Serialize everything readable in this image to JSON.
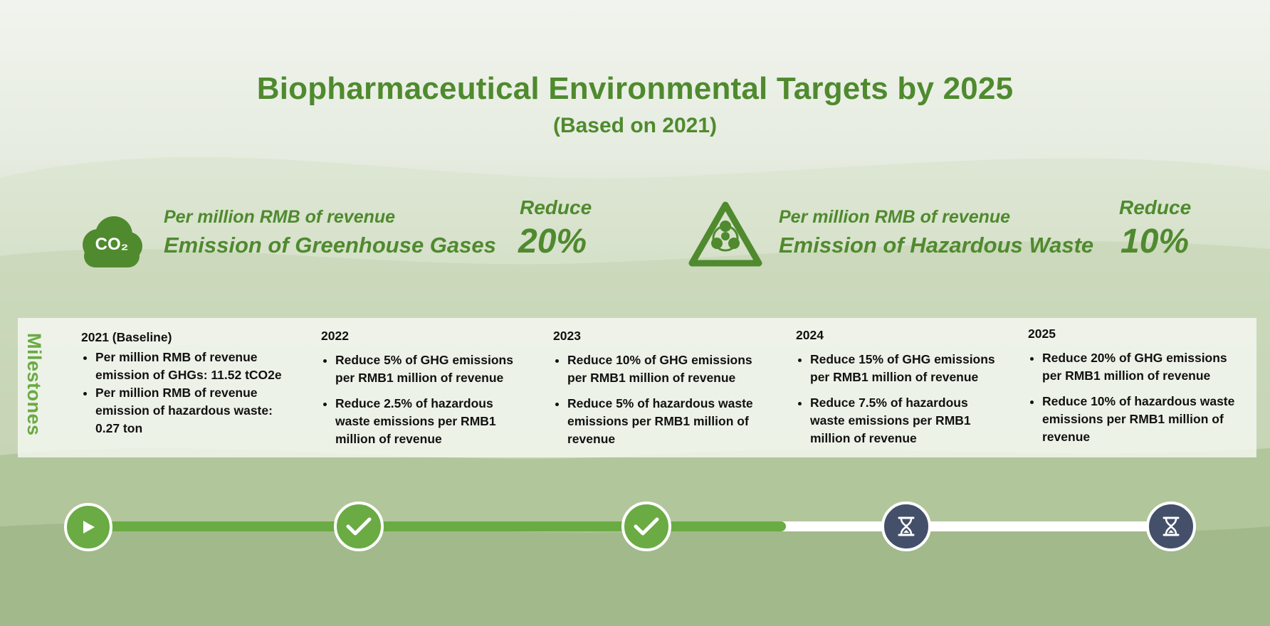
{
  "title": "Biopharmaceutical Environmental Targets by 2025",
  "subtitle": "(Based on 2021)",
  "colors": {
    "brand_green": "#4f8a2e",
    "milestone_green": "#6aab44",
    "pending_navy": "#44506a"
  },
  "targets": [
    {
      "icon": "co2-cloud-icon",
      "icon_text": "CO₂",
      "subheading": "Per million RMB of revenue",
      "heading": "Emission of Greenhouse Gases",
      "action": "Reduce",
      "percent": "20%"
    },
    {
      "icon": "biohazard-warning-icon",
      "subheading": "Per million RMB of revenue",
      "heading": "Emission of Hazardous Waste",
      "action": "Reduce",
      "percent": "10%"
    }
  ],
  "milestones": {
    "label": "Milestones",
    "columns": [
      {
        "year": "2021 (Baseline)",
        "items": [
          "Per million RMB of revenue emission of GHGs: 11.52 tCO2e",
          "Per million RMB of revenue emission of hazardous waste: 0.27 ton"
        ]
      },
      {
        "year": "2022",
        "items": [
          "Reduce 5% of GHG emissions per RMB1 million of revenue",
          "Reduce 2.5% of hazardous waste emissions per RMB1 million of revenue"
        ]
      },
      {
        "year": "2023",
        "items": [
          "Reduce 10% of GHG emissions per RMB1 million of revenue",
          "Reduce 5% of hazardous waste emissions per RMB1 million of revenue"
        ]
      },
      {
        "year": "2024",
        "items": [
          "Reduce 15% of GHG emissions per RMB1 million of revenue",
          "Reduce 7.5% of hazardous waste emissions per RMB1 million of revenue"
        ]
      },
      {
        "year": "2025",
        "items": [
          "Reduce 20% of GHG emissions per RMB1 million of revenue",
          "Reduce 10% of hazardous waste emissions  per RMB1 million of revenue"
        ]
      }
    ]
  },
  "timeline": {
    "nodes": [
      {
        "status": "start",
        "icon": "play-icon"
      },
      {
        "status": "completed",
        "icon": "checkmark-icon"
      },
      {
        "status": "completed",
        "icon": "checkmark-icon"
      },
      {
        "status": "pending",
        "icon": "hourglass-icon"
      },
      {
        "status": "pending",
        "icon": "hourglass-icon"
      }
    ]
  }
}
